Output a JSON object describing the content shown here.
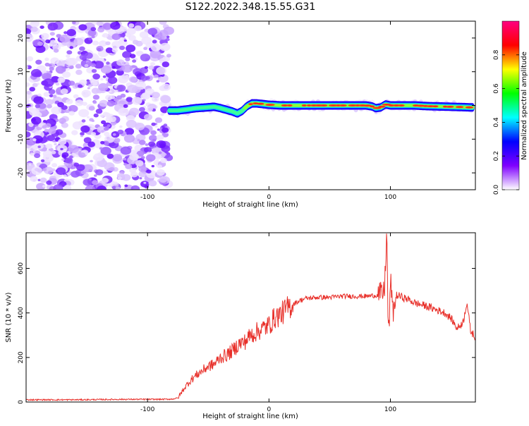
{
  "title": "S122.2022.348.15.55.G31",
  "chart_data": [
    {
      "type": "heatmap",
      "xlabel": "Height of straight line (km)",
      "ylabel": "Frequency (Hz)",
      "xlim": [
        -200,
        170
      ],
      "ylim": [
        -25,
        25
      ],
      "xticks": [
        -100,
        0,
        100
      ],
      "xtick_labels": [
        "-100",
        "0",
        "100"
      ],
      "yticks": [
        -20,
        -10,
        0,
        10,
        20
      ],
      "ytick_labels": [
        "-20",
        "-10",
        "0",
        "10",
        "20"
      ],
      "noise_region_x": [
        -200,
        -82
      ],
      "ridge": {
        "x": [
          -82,
          -75,
          -68,
          -60,
          -52,
          -45,
          -40,
          -35,
          -30,
          -26,
          -22,
          -18,
          -14,
          -10,
          -5,
          0,
          10,
          20,
          30,
          40,
          50,
          60,
          70,
          80,
          85,
          88,
          92,
          96,
          100,
          105,
          110,
          120,
          130,
          140,
          150,
          160,
          168
        ],
        "y": [
          -1.5,
          -1.5,
          -1.2,
          -0.8,
          -0.6,
          -0.4,
          -0.8,
          -1.3,
          -1.8,
          -2.4,
          -1.6,
          -0.2,
          0.6,
          0.6,
          0.4,
          0.2,
          0.0,
          0.0,
          0.0,
          0.0,
          0.0,
          0.0,
          0.0,
          0.0,
          -0.3,
          -0.8,
          -0.6,
          0.3,
          0.0,
          0.0,
          0.0,
          0.0,
          -0.2,
          -0.3,
          -0.4,
          -0.5,
          -0.6
        ]
      },
      "colorbar": {
        "label": "Normalized spectral amplitude",
        "range": [
          0,
          1
        ],
        "ticks": [
          0.0,
          0.2,
          0.4,
          0.6,
          0.8
        ],
        "tick_labels": [
          "0.0",
          "0.2",
          "0.4",
          "0.6",
          "0.8"
        ],
        "colors": [
          "#ffffff",
          "#7f00ff",
          "#0000ff",
          "#00ffff",
          "#00ff00",
          "#ffff00",
          "#ff0000",
          "#ff0080"
        ]
      }
    },
    {
      "type": "line",
      "xlabel": "Height of straight line (km)",
      "ylabel": "SNR (10 * v/v)",
      "xlim": [
        -200,
        170
      ],
      "ylim": [
        0,
        760
      ],
      "xticks": [
        -100,
        0,
        100
      ],
      "xtick_labels": [
        "-100",
        "0",
        "100"
      ],
      "yticks": [
        0,
        200,
        400,
        600
      ],
      "ytick_labels": [
        "0",
        "200",
        "400",
        "600"
      ],
      "color": "#e8302a",
      "series": [
        {
          "x": [
            -200,
            -160,
            -120,
            -90,
            -80,
            -75,
            -70,
            -65,
            -60,
            -55,
            -50,
            -45,
            -40,
            -35,
            -30,
            -25,
            -20,
            -15,
            -10,
            -5,
            0,
            5,
            10,
            15,
            20,
            25,
            30,
            40,
            50,
            60,
            70,
            80,
            90,
            95,
            97,
            98,
            99,
            100,
            102,
            105,
            110,
            115,
            120,
            130,
            140,
            145,
            150,
            155,
            160,
            163,
            166,
            170
          ],
          "y": [
            10,
            10,
            12,
            12,
            13,
            18,
            60,
            95,
            120,
            140,
            160,
            170,
            200,
            210,
            230,
            260,
            270,
            300,
            315,
            330,
            345,
            380,
            395,
            420,
            440,
            455,
            465,
            470,
            470,
            475,
            475,
            475,
            480,
            490,
            760,
            400,
            300,
            560,
            400,
            480,
            470,
            460,
            445,
            430,
            410,
            400,
            375,
            330,
            360,
            450,
            320,
            290
          ]
        }
      ]
    }
  ]
}
